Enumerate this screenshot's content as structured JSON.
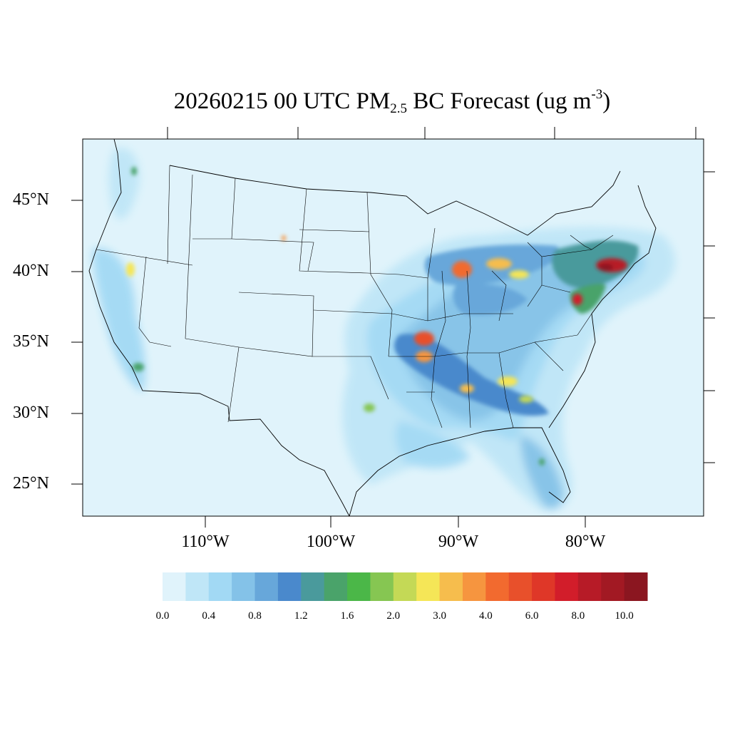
{
  "title": {
    "prefix": "20260215 00 UTC PM",
    "subscript": "2.5",
    "middle": " BC Forecast (ug m",
    "superscript": "-3",
    "suffix": ")"
  },
  "map": {
    "projection": "Lambert conformal conic (CONUS)",
    "background_color": "#e0f3fb",
    "lat_ticks": [
      "45°N",
      "40°N",
      "35°N",
      "30°N",
      "25°N"
    ],
    "lon_ticks": [
      "110°W",
      "100°W",
      "90°W",
      "80°W"
    ],
    "hotspots": [
      {
        "region": "Chicago",
        "level": "4.0-6.0"
      },
      {
        "region": "Detroit / Ohio",
        "level": "3.0-4.0"
      },
      {
        "region": "Arkansas",
        "level": "4.0-6.0"
      },
      {
        "region": "Alabama / Georgia",
        "level": "2.0-3.0"
      },
      {
        "region": "New York / Philadelphia",
        "level": "8.0-10.0"
      },
      {
        "region": "Washington DC",
        "level": "6.0-8.0"
      },
      {
        "region": "Los Angeles",
        "level": "1.6-2.0"
      },
      {
        "region": "Northern California",
        "level": "2.0-3.0"
      }
    ]
  },
  "colorbar": {
    "colors": [
      "#e0f3fb",
      "#bfe6f7",
      "#a2d9f4",
      "#84c2e8",
      "#67a7da",
      "#4a89cc",
      "#4a9a9c",
      "#4aa36a",
      "#4bb748",
      "#86c652",
      "#c4d956",
      "#f5e657",
      "#f6bd4d",
      "#f6953f",
      "#f26a2f",
      "#e8502b",
      "#df3728",
      "#d21d2a",
      "#b71b27",
      "#a21923",
      "#8b1620"
    ],
    "labels": [
      "0.0",
      "0.4",
      "0.8",
      "1.2",
      "1.6",
      "2.0",
      "3.0",
      "4.0",
      "6.0",
      "8.0",
      "10.0"
    ]
  }
}
